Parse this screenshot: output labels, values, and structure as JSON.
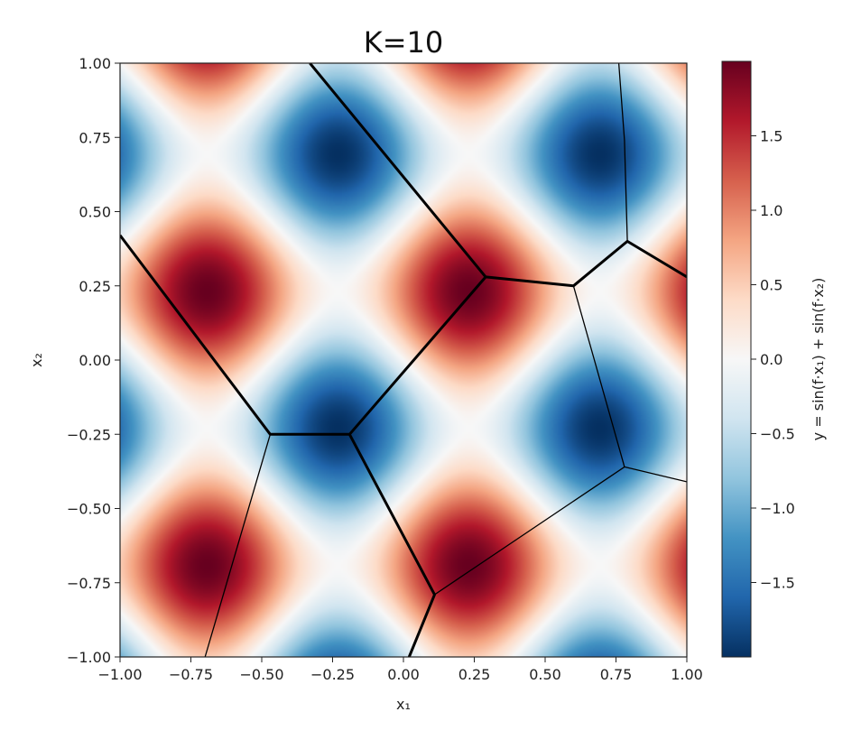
{
  "chart_data": {
    "type": "heatmap",
    "title": "K=10",
    "xlabel": "x₁",
    "ylabel": "x₂",
    "colorbar_label": "y = sin(f·x₁) + sin(f·x₂)",
    "function": "sin(f*x1) + sin(f*x2)",
    "frequency_f": 6.8,
    "xlim": [
      -1.0,
      1.0
    ],
    "ylim": [
      -1.0,
      1.0
    ],
    "x_ticks": [
      -1.0,
      -0.75,
      -0.5,
      -0.25,
      0.0,
      0.25,
      0.5,
      0.75,
      1.0
    ],
    "x_tick_labels": [
      "−1.00",
      "−0.75",
      "−0.50",
      "−0.25",
      "0.00",
      "0.25",
      "0.50",
      "0.75",
      "1.00"
    ],
    "y_ticks": [
      1.0,
      0.75,
      0.5,
      0.25,
      0.0,
      -0.25,
      -0.5,
      -0.75,
      -1.0
    ],
    "y_tick_labels": [
      "1.00",
      "0.75",
      "0.50",
      "0.25",
      "0.00",
      "−0.25",
      "−0.50",
      "−0.75",
      "−1.00"
    ],
    "colorbar_range": [
      -2.0,
      2.0
    ],
    "colorbar_ticks": [
      1.5,
      1.0,
      0.5,
      0.0,
      -0.5,
      -1.0,
      -1.5
    ],
    "colorbar_tick_labels": [
      "1.5",
      "1.0",
      "0.5",
      "0.0",
      "−0.5",
      "−1.0",
      "−1.5"
    ],
    "colormap": "RdBu_r",
    "colormap_stops": [
      "#053061",
      "#2166ac",
      "#4393c3",
      "#92c5de",
      "#d1e5f0",
      "#f7f7f7",
      "#fddbc7",
      "#f4a582",
      "#d6604d",
      "#b2182b",
      "#67001f"
    ],
    "partition_edges": [
      {
        "weight": "thick",
        "points": [
          [
            -0.33,
            1.0
          ],
          [
            0.29,
            0.28
          ],
          [
            0.6,
            0.25
          ],
          [
            0.79,
            0.4
          ],
          [
            1.0,
            0.28
          ]
        ]
      },
      {
        "weight": "thick",
        "points": [
          [
            -1.0,
            0.42
          ],
          [
            -0.47,
            -0.25
          ],
          [
            -0.19,
            -0.25
          ],
          [
            0.29,
            0.28
          ]
        ]
      },
      {
        "weight": "thick",
        "points": [
          [
            -0.19,
            -0.25
          ],
          [
            0.11,
            -0.79
          ],
          [
            0.02,
            -1.0
          ]
        ]
      },
      {
        "weight": "thin",
        "points": [
          [
            0.6,
            0.25
          ],
          [
            0.78,
            -0.36
          ],
          [
            1.0,
            -0.41
          ]
        ]
      },
      {
        "weight": "thin",
        "points": [
          [
            0.11,
            -0.79
          ],
          [
            0.78,
            -0.36
          ]
        ]
      },
      {
        "weight": "thin",
        "points": [
          [
            0.76,
            1.0
          ],
          [
            0.78,
            0.74
          ],
          [
            0.79,
            0.4
          ]
        ]
      },
      {
        "weight": "thin",
        "points": [
          [
            -0.47,
            -0.25
          ],
          [
            -0.7,
            -1.0
          ]
        ]
      }
    ]
  }
}
